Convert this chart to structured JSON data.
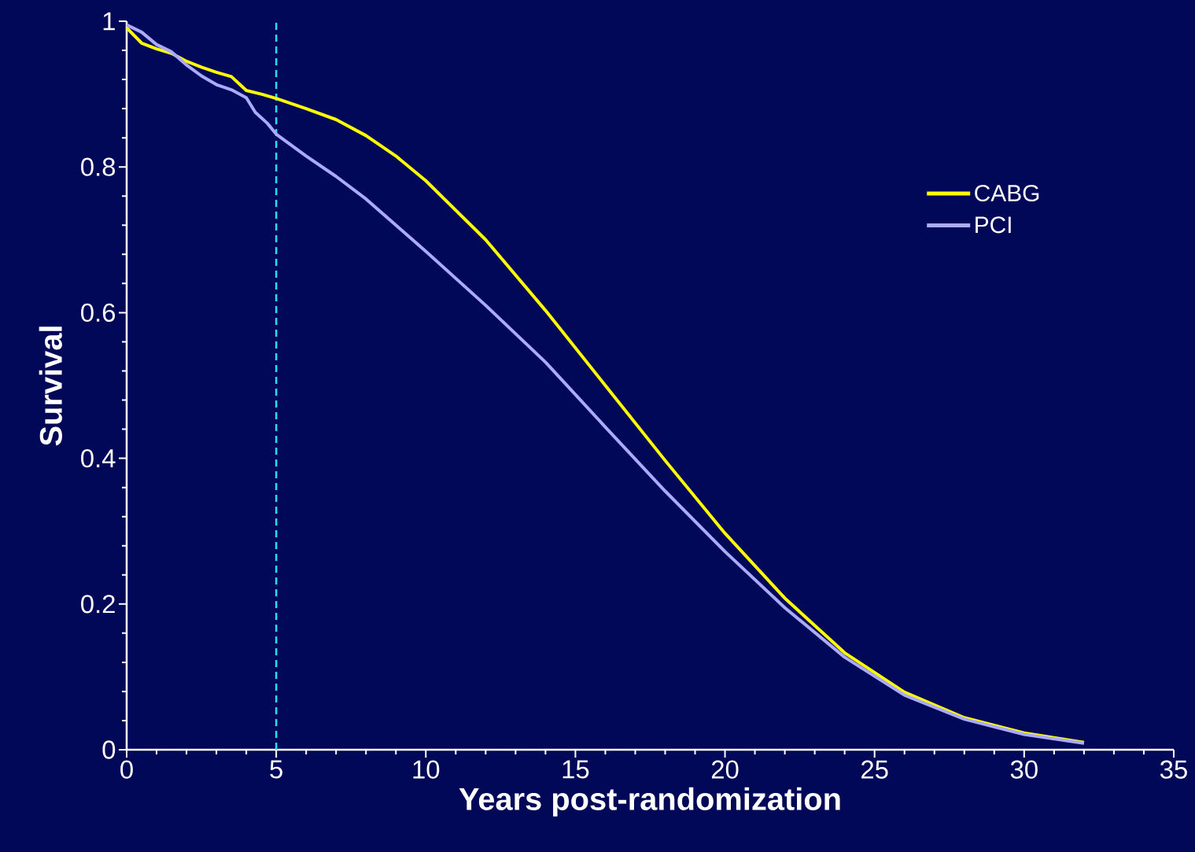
{
  "chart_data": {
    "type": "line",
    "xlabel": "Years post-randomization",
    "ylabel": "Survival",
    "xlim": [
      0,
      35
    ],
    "ylim": [
      0,
      1
    ],
    "xticks": [
      0,
      5,
      10,
      15,
      20,
      25,
      30,
      35
    ],
    "yticks": [
      0,
      0.2,
      0.4,
      0.6,
      0.8,
      1
    ],
    "grid": false,
    "legend": "right",
    "marker": "none",
    "line_style": "solid",
    "ref_lines": [
      {
        "axis": "x",
        "value": 5,
        "color": "#22e0f0",
        "line_style": "dashed"
      }
    ],
    "series": [
      {
        "name": "CABG",
        "color": "#ffff00",
        "x": [
          0,
          0.5,
          1,
          1.5,
          2,
          2.5,
          3,
          3.5,
          4,
          4.5,
          5,
          6,
          7,
          8,
          9,
          10,
          12,
          14,
          16,
          18,
          20,
          22,
          24,
          26,
          28,
          30,
          32
        ],
        "values": [
          0.991,
          0.97,
          0.962,
          0.956,
          0.945,
          0.937,
          0.93,
          0.924,
          0.905,
          0.9,
          0.894,
          0.88,
          0.865,
          0.843,
          0.815,
          0.781,
          0.7,
          0.603,
          0.5,
          0.397,
          0.297,
          0.208,
          0.133,
          0.079,
          0.044,
          0.023,
          0.01
        ]
      },
      {
        "name": "PCI",
        "color": "#aaaaff",
        "x": [
          0,
          0.5,
          1,
          1.5,
          2,
          2.5,
          3,
          3.5,
          4,
          4.3,
          4.7,
          5,
          6,
          7,
          8,
          10,
          12,
          14,
          16,
          18,
          20,
          22,
          24,
          26,
          28,
          30,
          32
        ],
        "values": [
          0.995,
          0.985,
          0.968,
          0.958,
          0.94,
          0.925,
          0.913,
          0.906,
          0.895,
          0.875,
          0.86,
          0.845,
          0.815,
          0.787,
          0.756,
          0.684,
          0.61,
          0.532,
          0.443,
          0.355,
          0.272,
          0.195,
          0.127,
          0.075,
          0.042,
          0.021,
          0.009
        ]
      }
    ]
  }
}
